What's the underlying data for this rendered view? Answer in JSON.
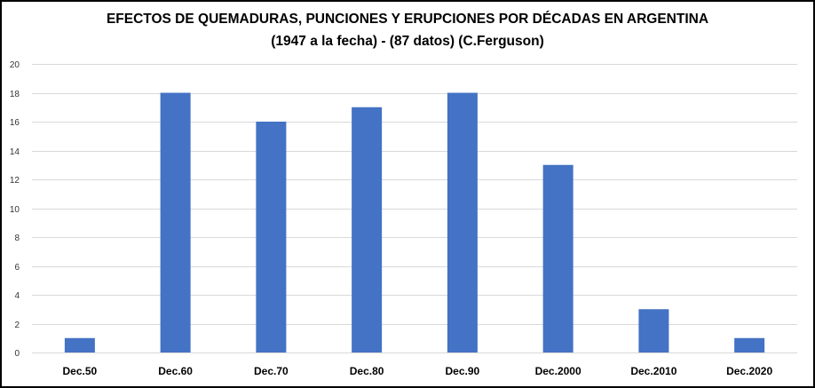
{
  "chart_data": {
    "type": "bar",
    "title": "EFECTOS DE QUEMADURAS, PUNCIONES Y ERUPCIONES POR DÉCADAS EN ARGENTINA",
    "subtitle": "(1947 a la fecha) - (87 datos) (C.Ferguson)",
    "categories": [
      "Dec.50",
      "Dec.60",
      "Dec.70",
      "Dec.80",
      "Dec.90",
      "Dec.2000",
      "Dec.2010",
      "Dec.2020"
    ],
    "values": [
      1,
      18,
      16,
      17,
      18,
      13,
      3,
      1
    ],
    "xlabel": "",
    "ylabel": "",
    "ylim": [
      0,
      20
    ],
    "yticks": [
      0,
      2,
      4,
      6,
      8,
      10,
      12,
      14,
      16,
      18,
      20
    ],
    "grid": true,
    "legend": "none",
    "bar_color": "#4472C4",
    "grid_color": "#D9D9D9"
  }
}
